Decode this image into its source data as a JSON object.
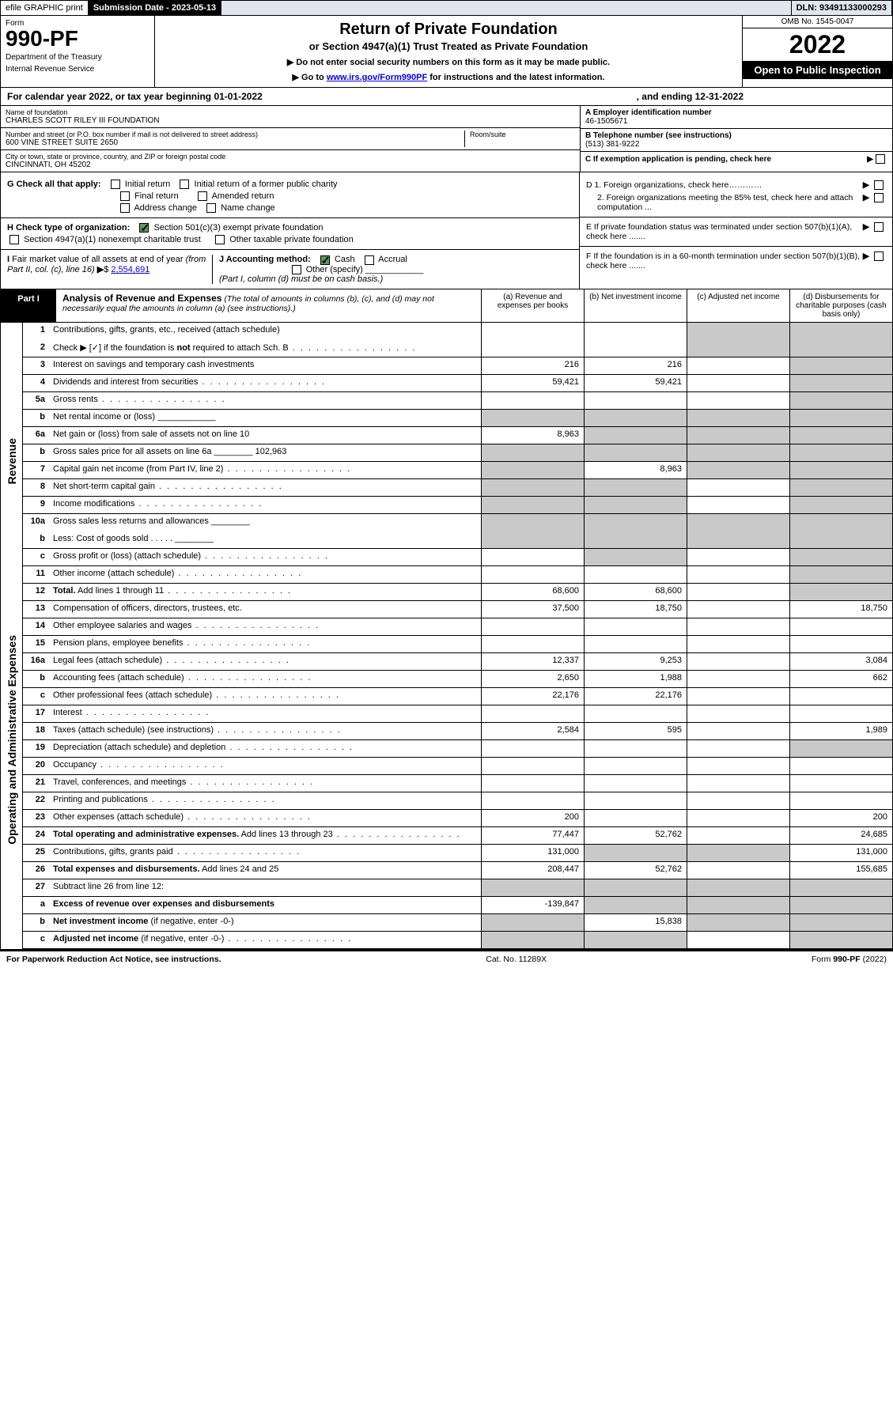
{
  "topbar": {
    "efile": "efile GRAPHIC print",
    "submission_label": "Submission Date - 2023-05-13",
    "dln": "DLN: 93491133000293"
  },
  "header": {
    "form_word": "Form",
    "form_number": "990-PF",
    "dept": "Department of the Treasury",
    "irs": "Internal Revenue Service",
    "title": "Return of Private Foundation",
    "subtitle": "or Section 4947(a)(1) Trust Treated as Private Foundation",
    "note1": "▶ Do not enter social security numbers on this form as it may be made public.",
    "note2_pre": "▶ Go to ",
    "note2_link": "www.irs.gov/Form990PF",
    "note2_post": " for instructions and the latest information.",
    "omb": "OMB No. 1545-0047",
    "year": "2022",
    "open": "Open to Public Inspection"
  },
  "calyear": {
    "left": "For calendar year 2022, or tax year beginning 01-01-2022",
    "right": ", and ending 12-31-2022"
  },
  "identity": {
    "name_lbl": "Name of foundation",
    "name": "CHARLES SCOTT RILEY III FOUNDATION",
    "addr_lbl": "Number and street (or P.O. box number if mail is not delivered to street address)",
    "addr": "600 VINE STREET SUITE 2650",
    "room_lbl": "Room/suite",
    "city_lbl": "City or town, state or province, country, and ZIP or foreign postal code",
    "city": "CINCINNATI, OH  45202",
    "a_lbl": "A Employer identification number",
    "a_val": "46-1505671",
    "b_lbl": "B Telephone number (see instructions)",
    "b_val": "(513) 381-9222",
    "c_lbl": "C If exemption application is pending, check here"
  },
  "gh": {
    "g_lbl": "G Check all that apply:",
    "g_opts": [
      "Initial return",
      "Initial return of a former public charity",
      "Final return",
      "Amended return",
      "Address change",
      "Name change"
    ],
    "h_lbl": "H Check type of organization:",
    "h_opt1": "Section 501(c)(3) exempt private foundation",
    "h_opt2": "Section 4947(a)(1) nonexempt charitable trust",
    "h_opt3": "Other taxable private foundation",
    "i_lbl": "I Fair market value of all assets at end of year (from Part II, col. (c), line 16)",
    "i_val": "2,554,691",
    "j_lbl": "J Accounting method:",
    "j_cash": "Cash",
    "j_accr": "Accrual",
    "j_other": "Other (specify)",
    "j_note": "(Part I, column (d) must be on cash basis.)",
    "d1": "D 1. Foreign organizations, check here…………",
    "d2": "2. Foreign organizations meeting the 85% test, check here and attach computation ...",
    "e": "E  If private foundation status was terminated under section 507(b)(1)(A), check here .......",
    "f": "F  If the foundation is in a 60-month termination under section 507(b)(1)(B), check here ......."
  },
  "part1": {
    "label": "Part I",
    "title": "Analysis of Revenue and Expenses",
    "title_note": " (The total of amounts in columns (b), (c), and (d) may not necessarily equal the amounts in column (a) (see instructions).)",
    "col_a": "(a)  Revenue and expenses per books",
    "col_b": "(b)  Net investment income",
    "col_c": "(c)  Adjusted net income",
    "col_d": "(d)  Disbursements for charitable purposes (cash basis only)"
  },
  "sidelabels": {
    "revenue": "Revenue",
    "opexp": "Operating and Administrative Expenses"
  },
  "rows": [
    {
      "ln": "1",
      "desc": "Contributions, gifts, grants, etc., received (attach schedule)",
      "a": "",
      "b": "",
      "c": "g",
      "d": "g",
      "noborder": true
    },
    {
      "ln": "2",
      "desc": "Check ▶ [✓] if the foundation is <b>not</b> required to attach Sch. B",
      "a": "",
      "b": "",
      "c": "g",
      "d": "g",
      "html": true,
      "dots": true
    },
    {
      "ln": "3",
      "desc": "Interest on savings and temporary cash investments",
      "a": "216",
      "b": "216",
      "c": "",
      "d": "g"
    },
    {
      "ln": "4",
      "desc": "Dividends and interest from securities",
      "a": "59,421",
      "b": "59,421",
      "c": "",
      "d": "g",
      "dots": true
    },
    {
      "ln": "5a",
      "desc": "Gross rents",
      "a": "",
      "b": "",
      "c": "",
      "d": "g",
      "dots": true
    },
    {
      "ln": "b",
      "desc": "Net rental income or (loss)  ____________",
      "a": "g",
      "b": "g",
      "c": "g",
      "d": "g"
    },
    {
      "ln": "6a",
      "desc": "Net gain or (loss) from sale of assets not on line 10",
      "a": "8,963",
      "b": "g",
      "c": "g",
      "d": "g"
    },
    {
      "ln": "b",
      "desc": "Gross sales price for all assets on line 6a ________ 102,963",
      "a": "g",
      "b": "g",
      "c": "g",
      "d": "g"
    },
    {
      "ln": "7",
      "desc": "Capital gain net income (from Part IV, line 2)",
      "a": "g",
      "b": "8,963",
      "c": "g",
      "d": "g",
      "dots": true
    },
    {
      "ln": "8",
      "desc": "Net short-term capital gain",
      "a": "g",
      "b": "g",
      "c": "",
      "d": "g",
      "dots": true
    },
    {
      "ln": "9",
      "desc": "Income modifications",
      "a": "g",
      "b": "g",
      "c": "",
      "d": "g",
      "dots": true
    },
    {
      "ln": "10a",
      "desc": "Gross sales less returns and allowances  ________",
      "a": "g",
      "b": "g",
      "c": "g",
      "d": "g",
      "noborder": true
    },
    {
      "ln": "b",
      "desc": "Less: Cost of goods sold    . . . . .  ________",
      "a": "g",
      "b": "g",
      "c": "g",
      "d": "g"
    },
    {
      "ln": "c",
      "desc": "Gross profit or (loss) (attach schedule)",
      "a": "",
      "b": "g",
      "c": "",
      "d": "g",
      "dots": true
    },
    {
      "ln": "11",
      "desc": "Other income (attach schedule)",
      "a": "",
      "b": "",
      "c": "",
      "d": "g",
      "dots": true
    },
    {
      "ln": "12",
      "desc": "<b>Total.</b> Add lines 1 through 11",
      "a": "68,600",
      "b": "68,600",
      "c": "",
      "d": "g",
      "html": true,
      "dots": true
    }
  ],
  "rows2": [
    {
      "ln": "13",
      "desc": "Compensation of officers, directors, trustees, etc.",
      "a": "37,500",
      "b": "18,750",
      "c": "",
      "d": "18,750"
    },
    {
      "ln": "14",
      "desc": "Other employee salaries and wages",
      "a": "",
      "b": "",
      "c": "",
      "d": "",
      "dots": true
    },
    {
      "ln": "15",
      "desc": "Pension plans, employee benefits",
      "a": "",
      "b": "",
      "c": "",
      "d": "",
      "dots": true
    },
    {
      "ln": "16a",
      "desc": "Legal fees (attach schedule)",
      "a": "12,337",
      "b": "9,253",
      "c": "",
      "d": "3,084",
      "dots": true
    },
    {
      "ln": "b",
      "desc": "Accounting fees (attach schedule)",
      "a": "2,650",
      "b": "1,988",
      "c": "",
      "d": "662",
      "dots": true
    },
    {
      "ln": "c",
      "desc": "Other professional fees (attach schedule)",
      "a": "22,176",
      "b": "22,176",
      "c": "",
      "d": "",
      "dots": true
    },
    {
      "ln": "17",
      "desc": "Interest",
      "a": "",
      "b": "",
      "c": "",
      "d": "",
      "dots": true
    },
    {
      "ln": "18",
      "desc": "Taxes (attach schedule) (see instructions)",
      "a": "2,584",
      "b": "595",
      "c": "",
      "d": "1,989",
      "dots": true
    },
    {
      "ln": "19",
      "desc": "Depreciation (attach schedule) and depletion",
      "a": "",
      "b": "",
      "c": "",
      "d": "g",
      "dots": true
    },
    {
      "ln": "20",
      "desc": "Occupancy",
      "a": "",
      "b": "",
      "c": "",
      "d": "",
      "dots": true
    },
    {
      "ln": "21",
      "desc": "Travel, conferences, and meetings",
      "a": "",
      "b": "",
      "c": "",
      "d": "",
      "dots": true
    },
    {
      "ln": "22",
      "desc": "Printing and publications",
      "a": "",
      "b": "",
      "c": "",
      "d": "",
      "dots": true
    },
    {
      "ln": "23",
      "desc": "Other expenses (attach schedule)",
      "a": "200",
      "b": "",
      "c": "",
      "d": "200",
      "dots": true
    },
    {
      "ln": "24",
      "desc": "<b>Total operating and administrative expenses.</b> Add lines 13 through 23",
      "a": "77,447",
      "b": "52,762",
      "c": "",
      "d": "24,685",
      "html": true,
      "dots": true
    },
    {
      "ln": "25",
      "desc": "Contributions, gifts, grants paid",
      "a": "131,000",
      "b": "g",
      "c": "g",
      "d": "131,000",
      "dots": true
    },
    {
      "ln": "26",
      "desc": "<b>Total expenses and disbursements.</b> Add lines 24 and 25",
      "a": "208,447",
      "b": "52,762",
      "c": "",
      "d": "155,685",
      "html": true
    }
  ],
  "rows3": [
    {
      "ln": "27",
      "desc": "Subtract line 26 from line 12:",
      "a": "g",
      "b": "g",
      "c": "g",
      "d": "g"
    },
    {
      "ln": "a",
      "desc": "<b>Excess of revenue over expenses and disbursements</b>",
      "a": "-139,847",
      "b": "g",
      "c": "g",
      "d": "g",
      "html": true
    },
    {
      "ln": "b",
      "desc": "<b>Net investment income</b> (if negative, enter -0-)",
      "a": "g",
      "b": "15,838",
      "c": "g",
      "d": "g",
      "html": true
    },
    {
      "ln": "c",
      "desc": "<b>Adjusted net income</b> (if negative, enter -0-)",
      "a": "g",
      "b": "g",
      "c": "",
      "d": "g",
      "html": true,
      "dots": true
    }
  ],
  "footer": {
    "left": "For Paperwork Reduction Act Notice, see instructions.",
    "mid": "Cat. No. 11289X",
    "right": "Form 990-PF (2022)"
  },
  "colors": {
    "grey_cell": "#c9c9c9",
    "blue_bg": "#dfe6ef",
    "link": "#0000ee",
    "check_green": "#5a9a5a"
  }
}
